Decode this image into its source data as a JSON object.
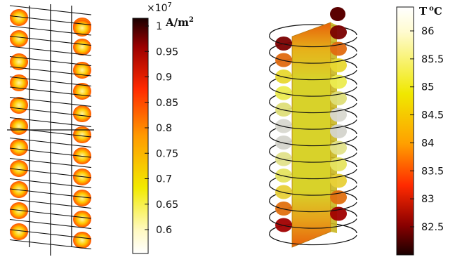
{
  "left_figure": {
    "colorbar": {
      "multiplier_base": "×10",
      "multiplier_exp": "7",
      "unit_main": "A/m",
      "unit_exp": "2",
      "ticks": [
        "1",
        "0.95",
        "0.9",
        "0.85",
        "0.8",
        "0.75",
        "0.7",
        "0.65",
        "0.6"
      ],
      "colors": {
        "top": "#1a0000",
        "upper": "#9a0000",
        "mid_red": "#ff2a00",
        "orange": "#ff9a00",
        "yellow": "#f2ea00",
        "pale": "#fff9c0",
        "bottom": "#ffffff"
      }
    }
  },
  "right_figure": {
    "colorbar": {
      "unit_main": "T",
      "unit_exp": "o",
      "unit_suffix": "C",
      "ticks": [
        "86",
        "85.5",
        "85",
        "84.5",
        "84",
        "83.5",
        "83",
        "82.5"
      ],
      "colors": {
        "top": "#ffffff",
        "pale": "#fffbd0",
        "yellow": "#f0e800",
        "orange": "#ffa000",
        "mid_red": "#ff2a00",
        "dark": "#8a0000",
        "bottom": "#1a0000"
      }
    }
  }
}
